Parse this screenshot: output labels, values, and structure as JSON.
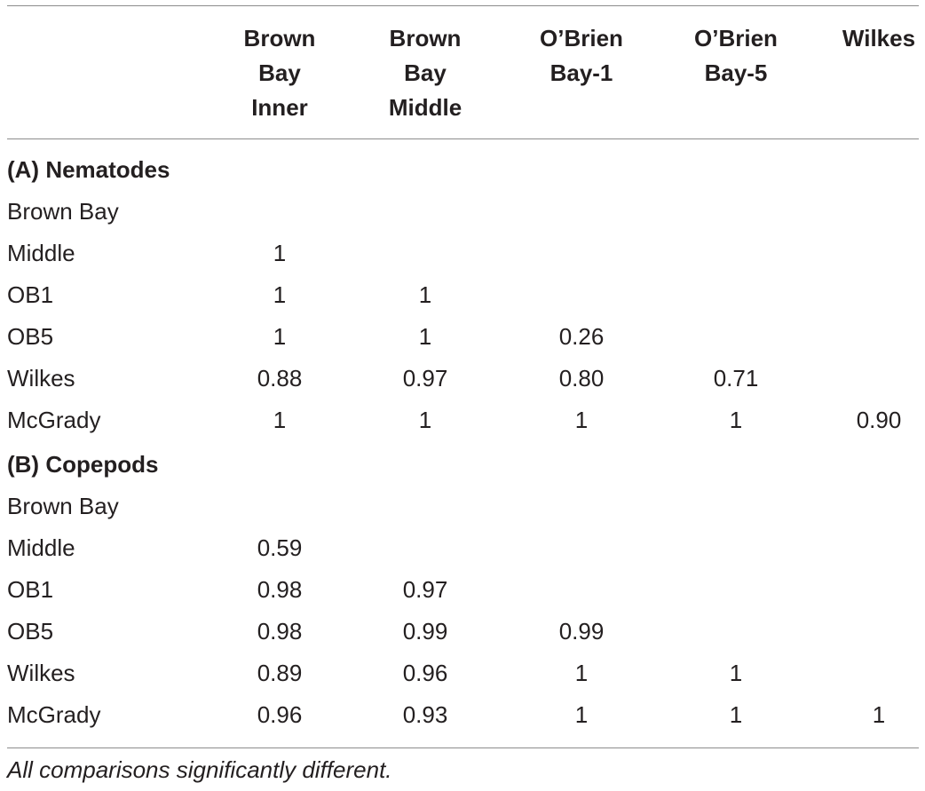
{
  "columns": [
    "Brown\nBay\nInner",
    "Brown\nBay\nMiddle",
    "O’Brien\nBay-1",
    "O’Brien\nBay-5",
    "Wilkes"
  ],
  "sections": [
    {
      "title": "(A) Nematodes",
      "rows": [
        {
          "label": "Brown Bay",
          "values": [
            "",
            "",
            "",
            "",
            ""
          ]
        },
        {
          "label": "Middle",
          "values": [
            "1",
            "",
            "",
            "",
            ""
          ]
        },
        {
          "label": "OB1",
          "values": [
            "1",
            "1",
            "",
            "",
            ""
          ]
        },
        {
          "label": "OB5",
          "values": [
            "1",
            "1",
            "0.26",
            "",
            ""
          ]
        },
        {
          "label": "Wilkes",
          "values": [
            "0.88",
            "0.97",
            "0.80",
            "0.71",
            ""
          ]
        },
        {
          "label": "McGrady",
          "values": [
            "1",
            "1",
            "1",
            "1",
            "0.90"
          ]
        }
      ]
    },
    {
      "title": "(B) Copepods",
      "rows": [
        {
          "label": "Brown Bay",
          "values": [
            "",
            "",
            "",
            "",
            ""
          ]
        },
        {
          "label": "Middle",
          "values": [
            "0.59",
            "",
            "",
            "",
            ""
          ]
        },
        {
          "label": "OB1",
          "values": [
            "0.98",
            "0.97",
            "",
            "",
            ""
          ]
        },
        {
          "label": "OB5",
          "values": [
            "0.98",
            "0.99",
            "0.99",
            "",
            ""
          ]
        },
        {
          "label": "Wilkes",
          "values": [
            "0.89",
            "0.96",
            "1",
            "1",
            ""
          ]
        },
        {
          "label": "McGrady",
          "values": [
            "0.96",
            "0.93",
            "1",
            "1",
            "1"
          ]
        }
      ]
    }
  ],
  "footnote": "All comparisons significantly different."
}
